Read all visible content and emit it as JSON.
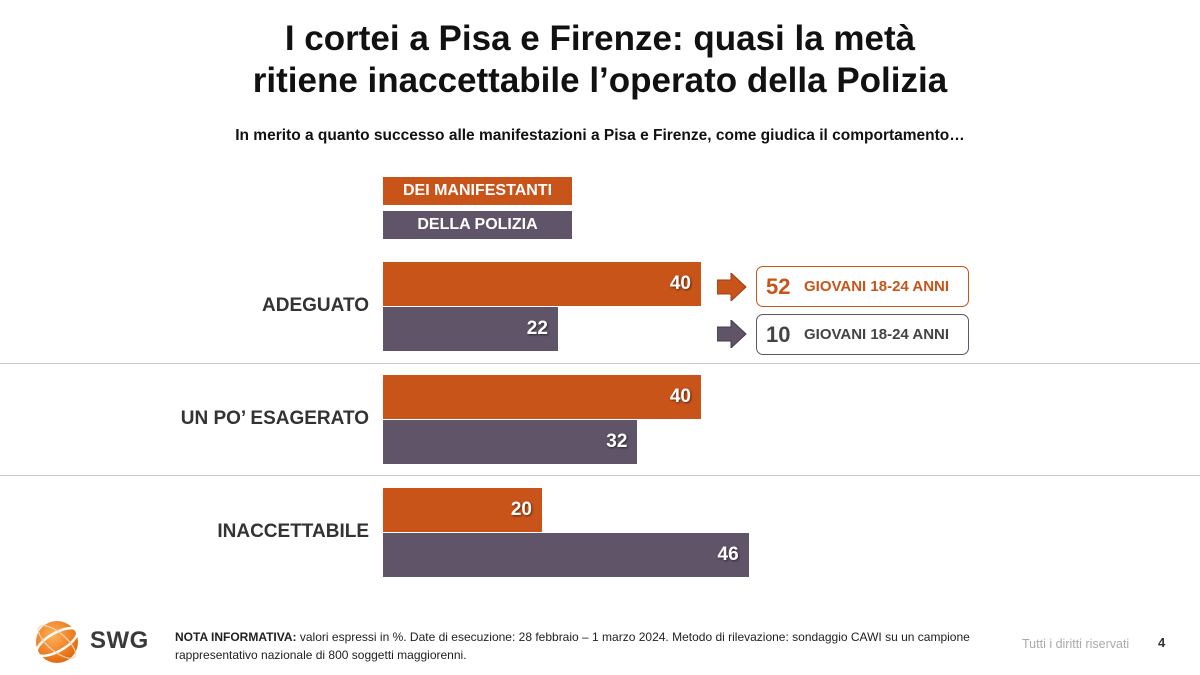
{
  "title_line1": "I cortei a Pisa e Firenze: quasi la metà",
  "title_line2": "ritiene inaccettabile l’operato della Polizia",
  "subtitle": "In merito a quanto successo alle manifestazioni a Pisa e Firenze, come giudica il comportamento…",
  "colors": {
    "manifestanti": "#C8541A",
    "polizia": "#605469"
  },
  "chart_data": {
    "type": "bar",
    "orientation": "horizontal",
    "title": "I cortei a Pisa e Firenze: quasi la metà ritiene inaccettabile l’operato della Polizia",
    "categories": [
      "ADEGUATO",
      "UN PO’ ESAGERATO",
      "INACCETTABILE"
    ],
    "series": [
      {
        "name": "DEI MANIFESTANTI",
        "values": [
          40,
          40,
          20
        ]
      },
      {
        "name": "DELLA POLIZIA",
        "values": [
          22,
          32,
          46
        ]
      }
    ],
    "unit": "%",
    "legend": "top",
    "annotations": [
      {
        "category": "ADEGUATO",
        "series": "DEI MANIFESTANTI",
        "value": 52,
        "text": "GIOVANI 18-24 ANNI"
      },
      {
        "category": "ADEGUATO",
        "series": "DELLA POLIZIA",
        "value": 10,
        "text": "GIOVANI 18-24 ANNI"
      }
    ]
  },
  "footer": {
    "note_label": "NOTA INFORMATIVA:",
    "note_text": " valori espressi in %. Date di esecuzione: 28 febbraio – 1 marzo 2024. Metodo di rilevazione: sondaggio CAWI su un campione rappresentativo nazionale di 800 soggetti maggiorenni.",
    "rights": "Tutti i diritti riservati",
    "page": "4",
    "logo_text": "SWG"
  }
}
